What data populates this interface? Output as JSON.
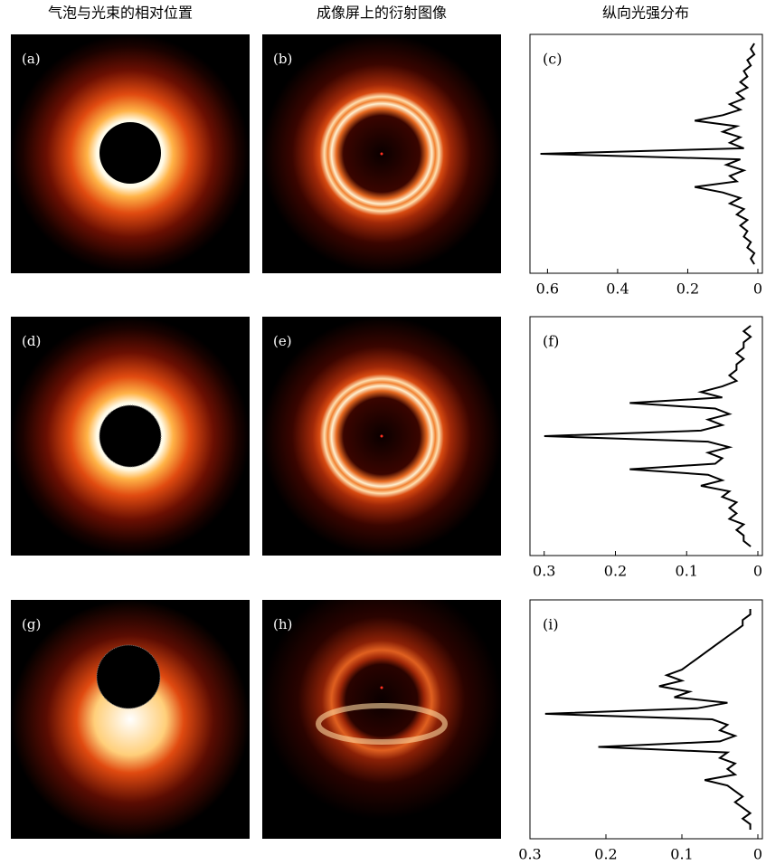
{
  "column_titles": [
    "气泡与光束的相对位置",
    "成像屏上的衍射图像",
    "纵向光强分布"
  ],
  "panel_labels": [
    "(a)",
    "(b)",
    "(d)",
    "(e)",
    "(g)",
    "(h)"
  ],
  "chart_data": [
    {
      "type": "line",
      "label": "(c)",
      "color": "#000000",
      "xlim": [
        0.65,
        0
      ],
      "xticks": [
        0.6,
        0.4,
        0.2,
        0
      ],
      "values": [
        0.01,
        0.02,
        0.01,
        0.03,
        0.02,
        0.04,
        0.03,
        0.05,
        0.03,
        0.06,
        0.04,
        0.08,
        0.05,
        0.1,
        0.18,
        0.06,
        0.1,
        0.05,
        0.08,
        0.04,
        0.62,
        0.05,
        0.09,
        0.04,
        0.08,
        0.06,
        0.18,
        0.1,
        0.05,
        0.08,
        0.04,
        0.06,
        0.03,
        0.05,
        0.03,
        0.04,
        0.02,
        0.03,
        0.01,
        0.02,
        0.01
      ]
    },
    {
      "type": "line",
      "label": "(f)",
      "color": "#000000",
      "xlim": [
        0.32,
        0
      ],
      "xticks": [
        0.3,
        0.2,
        0.1,
        0
      ],
      "values": [
        0.01,
        0.02,
        0.01,
        0.02,
        0.02,
        0.03,
        0.02,
        0.03,
        0.03,
        0.04,
        0.03,
        0.05,
        0.08,
        0.05,
        0.18,
        0.06,
        0.04,
        0.07,
        0.05,
        0.08,
        0.3,
        0.07,
        0.04,
        0.07,
        0.05,
        0.06,
        0.18,
        0.07,
        0.05,
        0.08,
        0.04,
        0.05,
        0.03,
        0.04,
        0.03,
        0.04,
        0.02,
        0.03,
        0.02,
        0.02,
        0.01
      ]
    },
    {
      "type": "line",
      "label": "(i)",
      "color": "#000000",
      "xlim": [
        0.3,
        0
      ],
      "xticks": [
        0.3,
        0.2,
        0.1,
        0
      ],
      "values": [
        0.01,
        0.01,
        0.02,
        0.02,
        0.03,
        0.04,
        0.05,
        0.06,
        0.07,
        0.08,
        0.09,
        0.1,
        0.12,
        0.1,
        0.13,
        0.09,
        0.11,
        0.04,
        0.08,
        0.28,
        0.06,
        0.04,
        0.05,
        0.03,
        0.05,
        0.21,
        0.04,
        0.05,
        0.03,
        0.04,
        0.03,
        0.07,
        0.04,
        0.03,
        0.02,
        0.03,
        0.02,
        0.01,
        0.02,
        0.01,
        0.01
      ]
    }
  ]
}
